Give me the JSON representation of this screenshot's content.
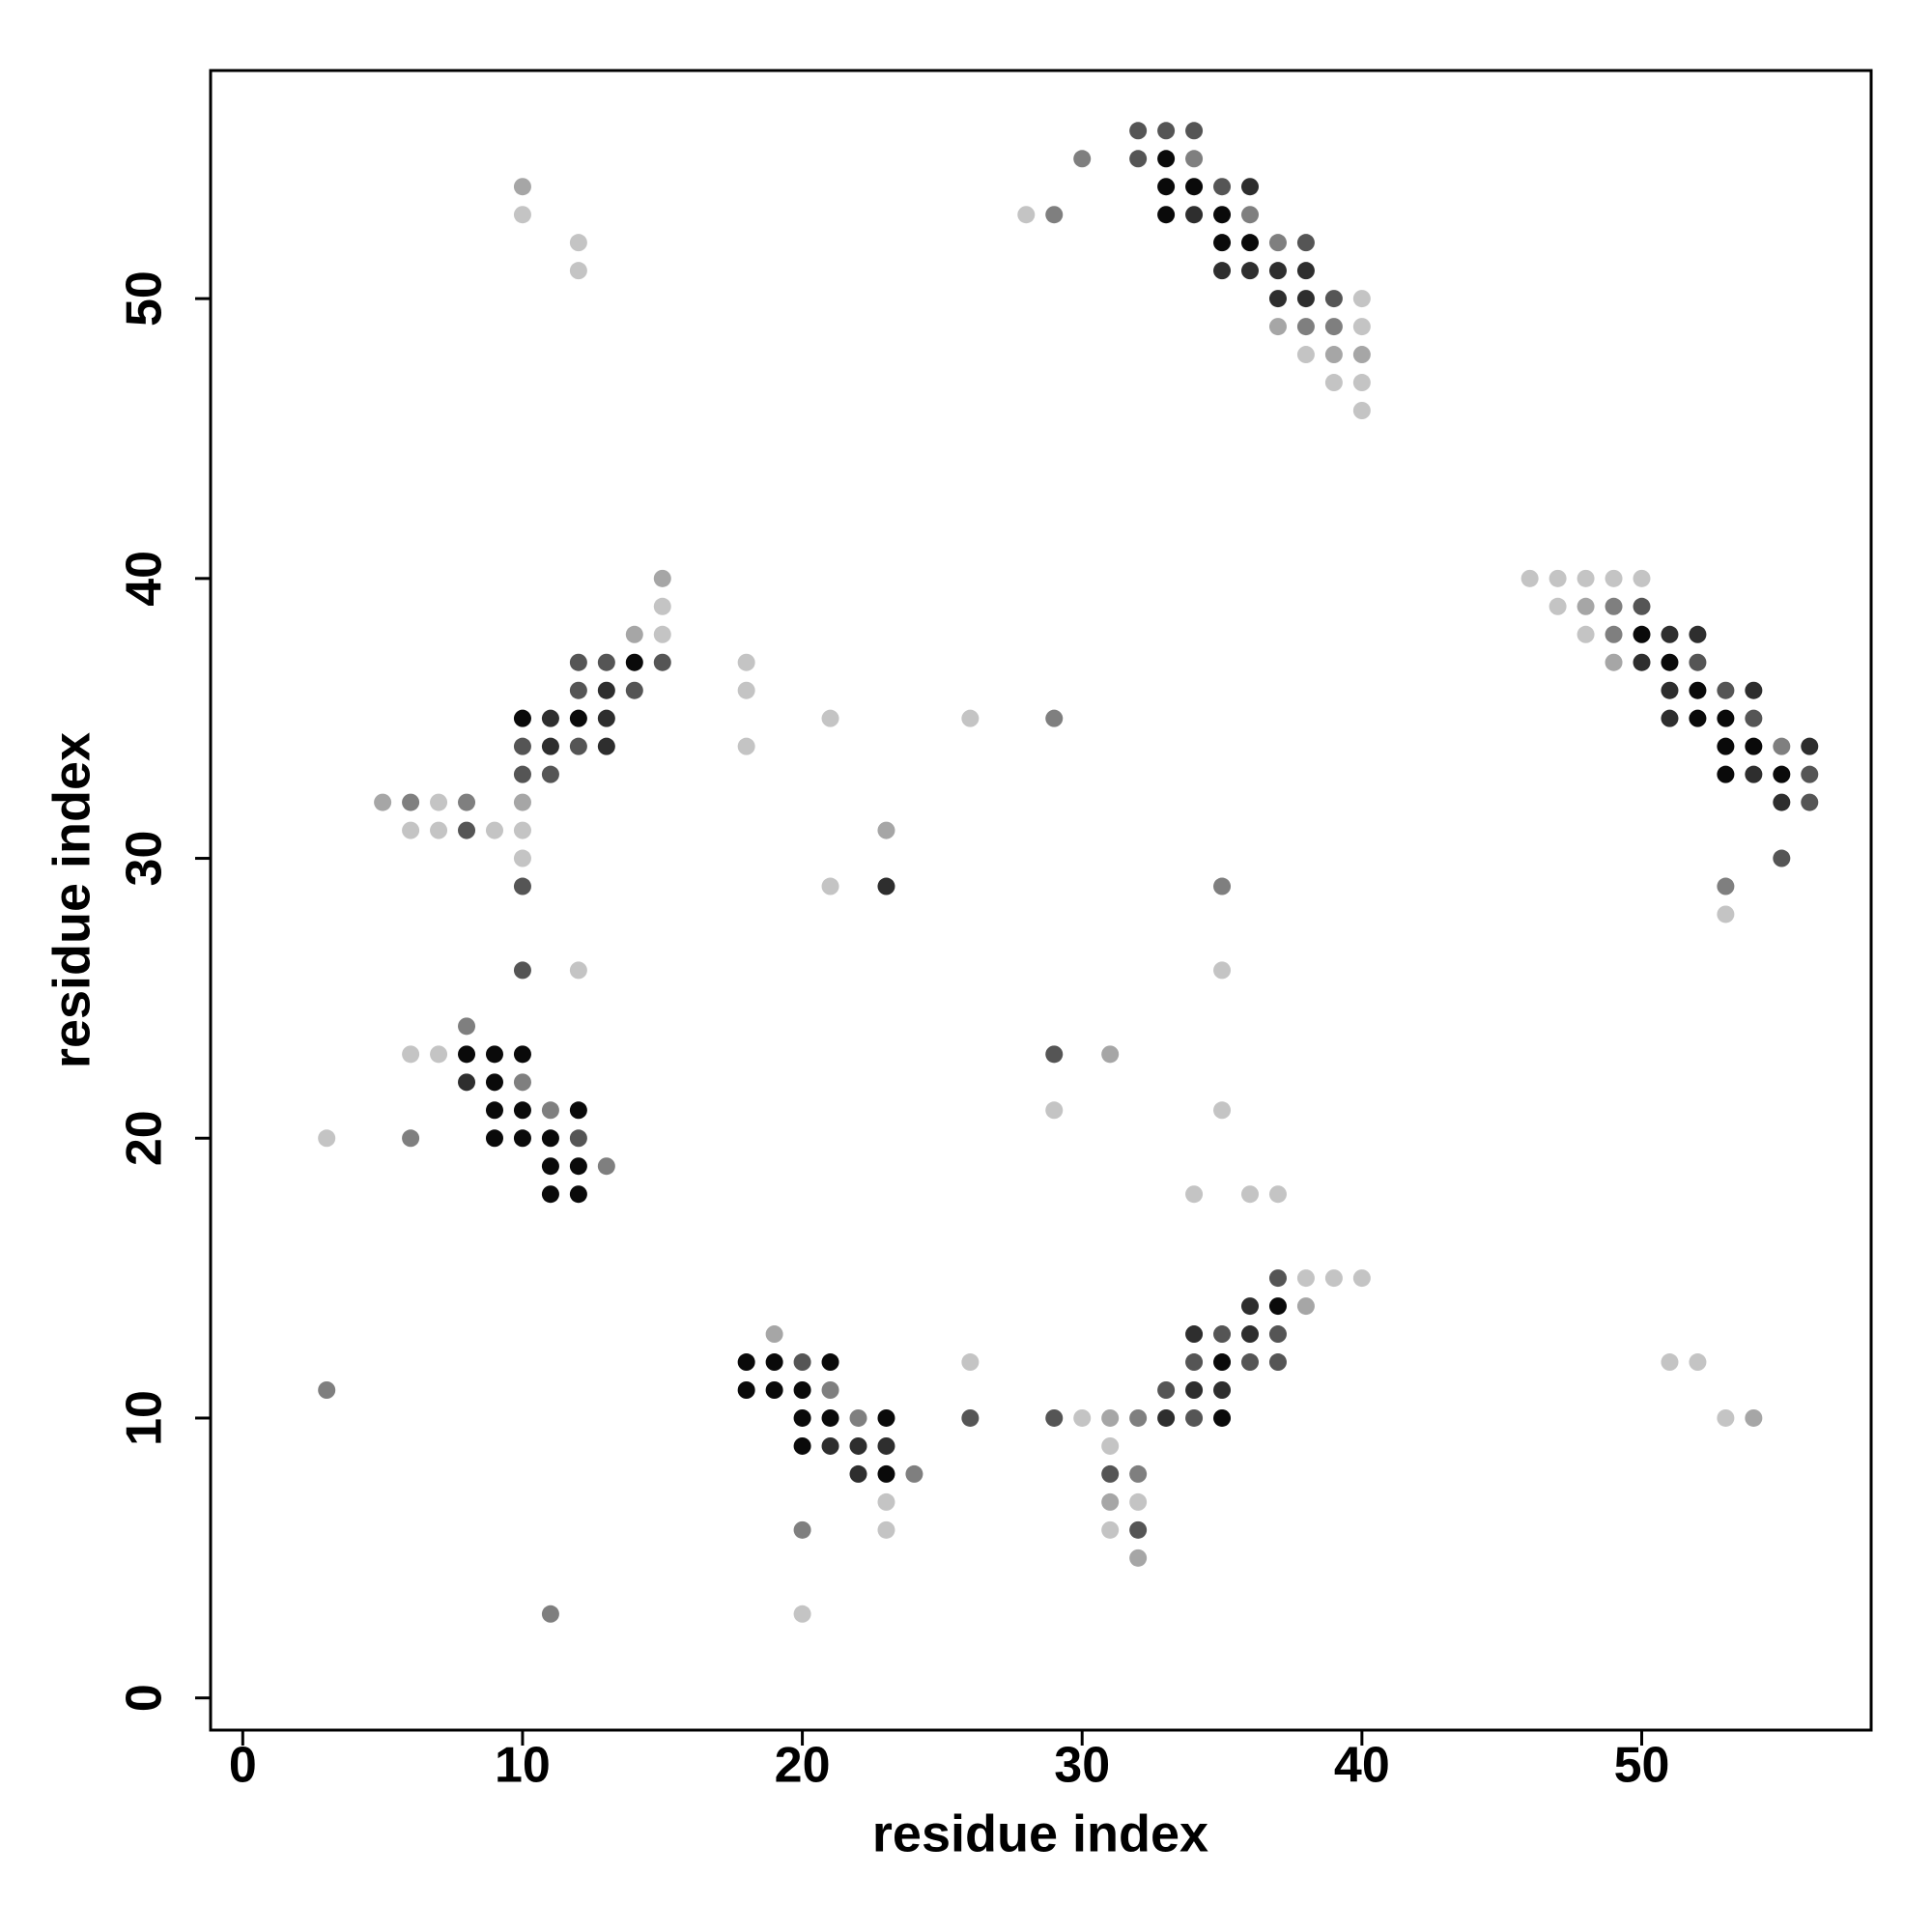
{
  "chart_data": {
    "type": "scatter",
    "xlabel": "residue index",
    "ylabel": "residue index",
    "xlim": [
      -1.15,
      58.2
    ],
    "ylim": [
      -1.15,
      58.15
    ],
    "xticks": [
      0,
      10,
      20,
      30,
      40,
      50
    ],
    "yticks": [
      0,
      10,
      20,
      30,
      40,
      50
    ],
    "grid": false,
    "series": [
      {
        "x": [
          32,
          33,
          34,
          30,
          32,
          33,
          34,
          10,
          33,
          34,
          35,
          36,
          10,
          28,
          29,
          33,
          34,
          35,
          36,
          12,
          35,
          36,
          37,
          38,
          12,
          35,
          36,
          37,
          38,
          37,
          38,
          39,
          40,
          37,
          38,
          39,
          40,
          38,
          39,
          40,
          39,
          40,
          40,
          15,
          46,
          47,
          48,
          49,
          50,
          15,
          47,
          48,
          49,
          50,
          14,
          15,
          48,
          49,
          50,
          51,
          52,
          12,
          13,
          14,
          15,
          18,
          49,
          50,
          51,
          52,
          12,
          13,
          14,
          18,
          51,
          52,
          53,
          54,
          10,
          11,
          12,
          13,
          21,
          26,
          29,
          51,
          52,
          53,
          54,
          10,
          11,
          12,
          13,
          18,
          53,
          54,
          55,
          56,
          10,
          11,
          53,
          54,
          55,
          56,
          5,
          6,
          7,
          8,
          10,
          55,
          56,
          6,
          7,
          8,
          9,
          10,
          23,
          10,
          55,
          10,
          21,
          23,
          35,
          53,
          53,
          10,
          12,
          35,
          8,
          6,
          7,
          8,
          9,
          10,
          29,
          31,
          8,
          9,
          10,
          9,
          10,
          11,
          12,
          29,
          35,
          3,
          6,
          9,
          10,
          11,
          12,
          11,
          12,
          13,
          11,
          12,
          34,
          36,
          37,
          37,
          38,
          39,
          40,
          36,
          37,
          38,
          19,
          34,
          35,
          36,
          37,
          18,
          19,
          20,
          21,
          26,
          34,
          35,
          36,
          37,
          51,
          52,
          3,
          18,
          19,
          20,
          21,
          33,
          34,
          35,
          20,
          21,
          22,
          23,
          26,
          29,
          30,
          31,
          32,
          33,
          34,
          35,
          53,
          54,
          20,
          21,
          22,
          23,
          31,
          22,
          23,
          24,
          31,
          32,
          23,
          31,
          32,
          20,
          23,
          31,
          32,
          32,
          11,
          20
        ],
        "values": [
          56,
          56,
          56,
          55,
          55,
          55,
          55,
          54,
          54,
          54,
          54,
          54,
          53,
          53,
          53,
          53,
          53,
          53,
          53,
          52,
          52,
          52,
          52,
          52,
          51,
          51,
          51,
          51,
          51,
          50,
          50,
          50,
          50,
          49,
          49,
          49,
          49,
          48,
          48,
          48,
          47,
          47,
          46,
          40,
          40,
          40,
          40,
          40,
          40,
          39,
          39,
          39,
          39,
          39,
          38,
          38,
          38,
          38,
          38,
          38,
          38,
          37,
          37,
          37,
          37,
          37,
          37,
          37,
          37,
          37,
          36,
          36,
          36,
          36,
          36,
          36,
          36,
          36,
          35,
          35,
          35,
          35,
          35,
          35,
          35,
          35,
          35,
          35,
          35,
          34,
          34,
          34,
          34,
          34,
          34,
          34,
          34,
          34,
          33,
          33,
          33,
          33,
          33,
          33,
          32,
          32,
          32,
          32,
          32,
          32,
          32,
          31,
          31,
          31,
          31,
          31,
          31,
          30,
          30,
          29,
          29,
          29,
          29,
          29,
          28,
          26,
          26,
          26,
          24,
          23,
          23,
          23,
          23,
          23,
          23,
          23,
          22,
          22,
          22,
          21,
          21,
          21,
          21,
          21,
          21,
          20,
          20,
          20,
          20,
          20,
          20,
          19,
          19,
          19,
          18,
          18,
          18,
          18,
          18,
          15,
          15,
          15,
          15,
          14,
          14,
          14,
          13,
          13,
          13,
          13,
          13,
          12,
          12,
          12,
          12,
          12,
          12,
          12,
          12,
          12,
          12,
          12,
          11,
          11,
          11,
          11,
          11,
          11,
          11,
          11,
          10,
          10,
          10,
          10,
          10,
          10,
          10,
          10,
          10,
          10,
          10,
          10,
          10,
          10,
          9,
          9,
          9,
          9,
          9,
          8,
          8,
          8,
          8,
          8,
          7,
          7,
          7,
          6,
          6,
          6,
          6,
          5,
          3,
          3
        ],
        "colors": [
          "#555555",
          "#555555",
          "#555555",
          "#7f7f7f",
          "#555555",
          "#0a0a0a",
          "#7f7f7f",
          "#a6a6a6",
          "#0a0a0a",
          "#0a0a0a",
          "#555555",
          "#2e2e2e",
          "#c4c4c4",
          "#c4c4c4",
          "#7f7f7f",
          "#0a0a0a",
          "#2e2e2e",
          "#0a0a0a",
          "#7f7f7f",
          "#c4c4c4",
          "#0a0a0a",
          "#0a0a0a",
          "#7f7f7f",
          "#555555",
          "#c4c4c4",
          "#2e2e2e",
          "#2e2e2e",
          "#2e2e2e",
          "#2e2e2e",
          "#2e2e2e",
          "#2e2e2e",
          "#555555",
          "#c4c4c4",
          "#a6a6a6",
          "#7f7f7f",
          "#7f7f7f",
          "#c4c4c4",
          "#c4c4c4",
          "#a6a6a6",
          "#a6a6a6",
          "#c4c4c4",
          "#c4c4c4",
          "#c4c4c4",
          "#a6a6a6",
          "#c4c4c4",
          "#c4c4c4",
          "#c4c4c4",
          "#c4c4c4",
          "#c4c4c4",
          "#c4c4c4",
          "#c4c4c4",
          "#a6a6a6",
          "#7f7f7f",
          "#555555",
          "#a6a6a6",
          "#c4c4c4",
          "#c4c4c4",
          "#7f7f7f",
          "#0a0a0a",
          "#2e2e2e",
          "#2e2e2e",
          "#555555",
          "#555555",
          "#0a0a0a",
          "#555555",
          "#c4c4c4",
          "#a6a6a6",
          "#2e2e2e",
          "#0a0a0a",
          "#555555",
          "#555555",
          "#2e2e2e",
          "#555555",
          "#c4c4c4",
          "#2e2e2e",
          "#0a0a0a",
          "#555555",
          "#2e2e2e",
          "#0a0a0a",
          "#2e2e2e",
          "#0a0a0a",
          "#2e2e2e",
          "#c4c4c4",
          "#c4c4c4",
          "#7f7f7f",
          "#2e2e2e",
          "#0a0a0a",
          "#0a0a0a",
          "#555555",
          "#555555",
          "#2e2e2e",
          "#555555",
          "#2e2e2e",
          "#c4c4c4",
          "#0a0a0a",
          "#0a0a0a",
          "#7f7f7f",
          "#2e2e2e",
          "#555555",
          "#555555",
          "#0a0a0a",
          "#2e2e2e",
          "#0a0a0a",
          "#555555",
          "#a6a6a6",
          "#7f7f7f",
          "#c4c4c4",
          "#7f7f7f",
          "#a6a6a6",
          "#2e2e2e",
          "#555555",
          "#c4c4c4",
          "#c4c4c4",
          "#555555",
          "#c4c4c4",
          "#c4c4c4",
          "#a6a6a6",
          "#c4c4c4",
          "#555555",
          "#555555",
          "#c4c4c4",
          "#2e2e2e",
          "#7f7f7f",
          "#7f7f7f",
          "#c4c4c4",
          "#555555",
          "#c4c4c4",
          "#c4c4c4",
          "#7f7f7f",
          "#c4c4c4",
          "#c4c4c4",
          "#0a0a0a",
          "#0a0a0a",
          "#0a0a0a",
          "#555555",
          "#a6a6a6",
          "#2e2e2e",
          "#0a0a0a",
          "#7f7f7f",
          "#0a0a0a",
          "#0a0a0a",
          "#7f7f7f",
          "#0a0a0a",
          "#c4c4c4",
          "#c4c4c4",
          "#c4c4c4",
          "#7f7f7f",
          "#0a0a0a",
          "#0a0a0a",
          "#0a0a0a",
          "#555555",
          "#0a0a0a",
          "#0a0a0a",
          "#7f7f7f",
          "#0a0a0a",
          "#0a0a0a",
          "#c4c4c4",
          "#c4c4c4",
          "#c4c4c4",
          "#555555",
          "#c4c4c4",
          "#c4c4c4",
          "#c4c4c4",
          "#2e2e2e",
          "#0a0a0a",
          "#a6a6a6",
          "#a6a6a6",
          "#2e2e2e",
          "#555555",
          "#2e2e2e",
          "#555555",
          "#0a0a0a",
          "#0a0a0a",
          "#555555",
          "#0a0a0a",
          "#c4c4c4",
          "#555555",
          "#0a0a0a",
          "#555555",
          "#555555",
          "#c4c4c4",
          "#c4c4c4",
          "#7f7f7f",
          "#0a0a0a",
          "#0a0a0a",
          "#0a0a0a",
          "#7f7f7f",
          "#555555",
          "#2e2e2e",
          "#2e2e2e",
          "#0a0a0a",
          "#0a0a0a",
          "#7f7f7f",
          "#0a0a0a",
          "#555555",
          "#555555",
          "#c4c4c4",
          "#a6a6a6",
          "#7f7f7f",
          "#2e2e2e",
          "#555555",
          "#0a0a0a",
          "#c4c4c4",
          "#a6a6a6",
          "#0a0a0a",
          "#2e2e2e",
          "#2e2e2e",
          "#2e2e2e",
          "#c4c4c4",
          "#2e2e2e",
          "#0a0a0a",
          "#7f7f7f",
          "#555555",
          "#7f7f7f",
          "#c4c4c4",
          "#a6a6a6",
          "#c4c4c4",
          "#7f7f7f",
          "#c4c4c4",
          "#c4c4c4",
          "#555555",
          "#a6a6a6",
          "#7f7f7f",
          "#c4c4c4"
        ]
      }
    ]
  }
}
